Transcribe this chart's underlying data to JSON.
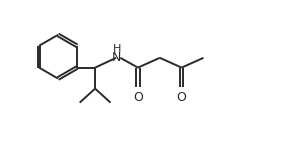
{
  "bg_color": "#ffffff",
  "bond_color": "#2a2a2a",
  "text_color": "#2a2a2a",
  "line_width": 1.4,
  "font_size": 8.5,
  "figsize": [
    2.84,
    1.47
  ],
  "dpi": 100,
  "xlim": [
    0,
    10
  ],
  "ylim": [
    0,
    5.2
  ]
}
